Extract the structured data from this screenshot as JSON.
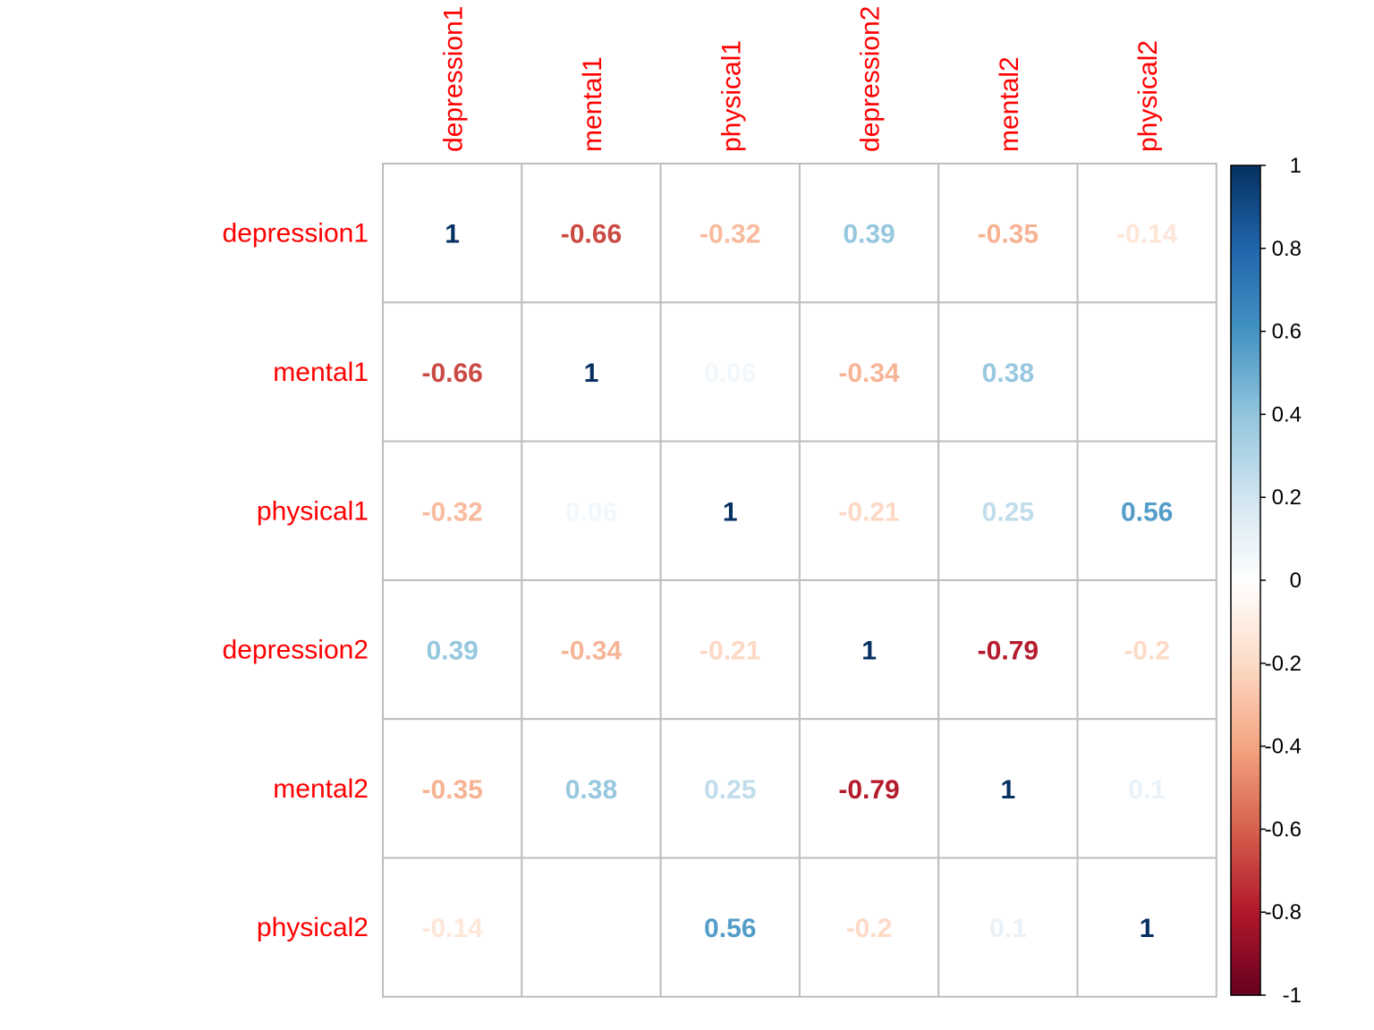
{
  "chart_data": {
    "type": "heatmap",
    "variables": [
      "depression1",
      "mental1",
      "physical1",
      "depression2",
      "mental2",
      "physical2"
    ],
    "matrix": [
      [
        1,
        -0.66,
        -0.32,
        0.39,
        -0.35,
        -0.14
      ],
      [
        -0.66,
        1,
        0.06,
        -0.34,
        0.38,
        0
      ],
      [
        -0.32,
        0.06,
        1,
        -0.21,
        0.25,
        0.56
      ],
      [
        0.39,
        -0.34,
        -0.21,
        1,
        -0.79,
        -0.2
      ],
      [
        -0.35,
        0.38,
        0.25,
        -0.79,
        1,
        0.1
      ],
      [
        -0.14,
        0,
        0.56,
        -0.2,
        0.1,
        1
      ]
    ],
    "display_labels": [
      [
        "1",
        "-0.66",
        "-0.32",
        "0.39",
        "-0.35",
        "-0.14"
      ],
      [
        "-0.66",
        "1",
        "0.06",
        "-0.34",
        "0.38",
        ""
      ],
      [
        "-0.32",
        "0.06",
        "1",
        "-0.21",
        "0.25",
        "0.56"
      ],
      [
        "0.39",
        "-0.34",
        "-0.21",
        "1",
        "-0.79",
        "-0.2"
      ],
      [
        "-0.35",
        "0.38",
        "0.25",
        "-0.79",
        "1",
        "0.1"
      ],
      [
        "-0.14",
        "",
        "0.56",
        "-0.2",
        "0.1",
        "1"
      ]
    ],
    "colorbar": {
      "range": [
        -1,
        1
      ],
      "ticks": [
        1,
        0.8,
        0.6,
        0.4,
        0.2,
        0,
        -0.2,
        -0.4,
        -0.6,
        -0.8,
        -1
      ],
      "tick_labels": [
        "1",
        "0.8",
        "0.6",
        "0.4",
        "0.2",
        "0",
        "-0.2",
        "-0.4",
        "-0.6",
        "-0.8",
        "-1"
      ]
    },
    "label_color": "#FF0000",
    "grid_color": "#BEBEBE",
    "palette": [
      "#67001F",
      "#B2182B",
      "#D6604D",
      "#F4A582",
      "#FDDBC7",
      "#FFFFFF",
      "#D1E5F0",
      "#92C5DE",
      "#4393C3",
      "#2166AC",
      "#053061"
    ]
  }
}
